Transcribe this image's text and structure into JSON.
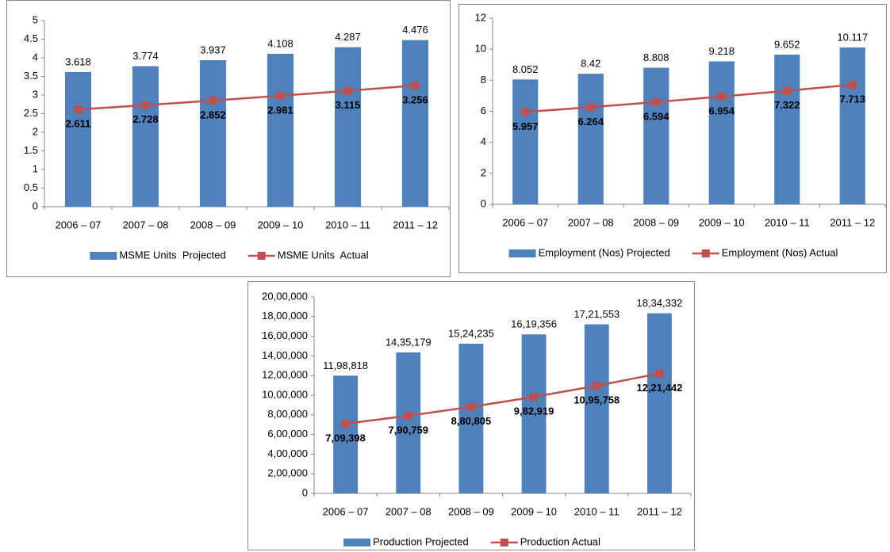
{
  "chart_data": [
    {
      "type": "bar",
      "categories": [
        "2006 – 07",
        "2007 – 08",
        "2008 – 09",
        "2009 – 10",
        "2010 – 11",
        "2011 – 12"
      ],
      "series": [
        {
          "name": "MSME Units  Projected",
          "color": "#4f81bd",
          "values": [
            3.618,
            3.774,
            3.937,
            4.108,
            4.287,
            4.476
          ]
        },
        {
          "name": "MSME Units  Actual",
          "color": "#c0504d",
          "type": "line",
          "values": [
            2.611,
            2.728,
            2.852,
            2.981,
            3.115,
            3.256
          ]
        }
      ],
      "ylim": [
        0,
        5
      ],
      "yticks": [
        0,
        0.5,
        1,
        1.5,
        2,
        2.5,
        3,
        3.5,
        4,
        4.5,
        5
      ],
      "grid": false,
      "legend": "bottom"
    },
    {
      "type": "bar",
      "categories": [
        "2006 – 07",
        "2007 – 08",
        "2008 – 09",
        "2009 – 10",
        "2010 – 11",
        "2011 – 12"
      ],
      "series": [
        {
          "name": "Employment (Nos) Projected",
          "color": "#4f81bd",
          "values": [
            8.052,
            8.42,
            8.808,
            9.218,
            9.652,
            10.117
          ]
        },
        {
          "name": "Employment (Nos) Actual",
          "color": "#c0504d",
          "type": "line",
          "values": [
            5.957,
            6.264,
            6.594,
            6.954,
            7.322,
            7.713
          ]
        }
      ],
      "ylim": [
        0,
        12
      ],
      "yticks": [
        0,
        2,
        4,
        6,
        8,
        10,
        12
      ],
      "grid": false,
      "legend": "bottom"
    },
    {
      "type": "bar",
      "categories": [
        "2006 – 07",
        "2007 – 08",
        "2008 – 09",
        "2009 – 10",
        "2010 – 11",
        "2011 – 12"
      ],
      "series": [
        {
          "name": "Production Projected",
          "color": "#4f81bd",
          "values": [
            1198818,
            1435179,
            1524235,
            1619356,
            1721553,
            1834332
          ],
          "value_labels": [
            "11,98,818",
            "14,35,179",
            "15,24,235",
            "16,19,356",
            "17,21,553",
            "18,34,332"
          ]
        },
        {
          "name": "Production Actual",
          "color": "#c0504d",
          "type": "line",
          "values": [
            709398,
            790759,
            880805,
            982919,
            1095758,
            1221442
          ],
          "value_labels": [
            "7,09,398",
            "7,90,759",
            "8,80,805",
            "9,82,919",
            "10,95,758",
            "12,21,442"
          ]
        }
      ],
      "ylim": [
        0,
        2000000
      ],
      "yticks": [
        0,
        {
          "value": 200000,
          "label": "2,00,000"
        },
        {
          "value": 400000,
          "label": "4,00,000"
        },
        {
          "value": 600000,
          "label": "6,00,000"
        },
        {
          "value": 800000,
          "label": "8,00,000"
        },
        {
          "value": 1000000,
          "label": "10,00,000"
        },
        {
          "value": 1200000,
          "label": "12,00,000"
        },
        {
          "value": 1400000,
          "label": "14,00,000"
        },
        {
          "value": 1600000,
          "label": "16,00,000"
        },
        {
          "value": 1800000,
          "label": "18,00,000"
        },
        {
          "value": 2000000,
          "label": "20,00,000"
        }
      ],
      "grid": false,
      "legend": "bottom"
    }
  ]
}
